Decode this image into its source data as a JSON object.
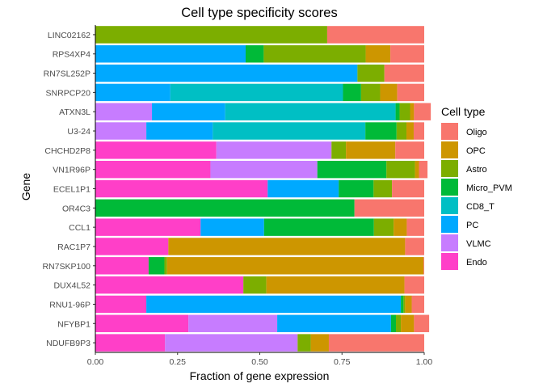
{
  "chart_data": {
    "type": "bar",
    "orientation": "horizontal",
    "stacked": true,
    "title": "Cell type specificity scores",
    "xlabel": "Fraction of gene expression",
    "ylabel": "Gene",
    "xlim": [
      0,
      1
    ],
    "xticks": [
      "0.00",
      "0.25",
      "0.50",
      "0.75",
      "1.00"
    ],
    "grid": false,
    "legend": {
      "title": "Cell type",
      "position": "right"
    },
    "categories": [
      "LINC02162",
      "RPS4XP4",
      "RN7SL252P",
      "SNRPCP20",
      "ATXN3L",
      "U3-24",
      "CHCHD2P8",
      "VN1R96P",
      "ECEL1P1",
      "OR4C3",
      "CCL1",
      "RAC1P7",
      "RN7SKP100",
      "DUX4L52",
      "RNU1-96P",
      "NFYBP1",
      "NDUFB9P3"
    ],
    "series": [
      {
        "name": "Endo",
        "color": "#FF3FC8",
        "values": [
          0,
          0,
          0,
          0,
          0,
          0,
          0.368,
          0.35,
          0.524,
          0,
          0.32,
          0.222,
          0.162,
          0.45,
          0.155,
          0.283,
          0.212
        ]
      },
      {
        "name": "VLMC",
        "color": "#C77CFF",
        "values": [
          0,
          0,
          0,
          0,
          0.172,
          0.155,
          0.35,
          0.325,
          0,
          0,
          0,
          0,
          0,
          0,
          0,
          0.27,
          0.403
        ]
      },
      {
        "name": "PC",
        "color": "#00A9FF",
        "values": [
          0,
          0.457,
          0.797,
          0.228,
          0.223,
          0.202,
          0,
          0,
          0.216,
          0,
          0.193,
          0,
          0,
          0,
          0.774,
          0.346,
          0
        ]
      },
      {
        "name": "CD8_T",
        "color": "#00BFC4",
        "values": [
          0,
          0,
          0,
          0.525,
          0.518,
          0.464,
          0,
          0,
          0,
          0,
          0,
          0,
          0,
          0,
          0,
          0,
          0
        ]
      },
      {
        "name": "Micro_PVM",
        "color": "#00BA38",
        "values": [
          0,
          0.055,
          0,
          0.055,
          0.012,
          0.095,
          0,
          0.21,
          0.106,
          0.788,
          0.334,
          0,
          0.048,
          0,
          0.008,
          0.015,
          0
        ]
      },
      {
        "name": "Astro",
        "color": "#7CAE00",
        "values": [
          0.705,
          0.31,
          0.082,
          0.058,
          0.032,
          0.03,
          0.044,
          0.087,
          0.056,
          0,
          0.06,
          0,
          0.008,
          0.07,
          0.005,
          0.015,
          0.04
        ]
      },
      {
        "name": "OPC",
        "color": "#CD9600",
        "values": [
          0,
          0.075,
          0,
          0.052,
          0.012,
          0.022,
          0.15,
          0.012,
          0,
          0,
          0.04,
          0.72,
          0.78,
          0.42,
          0.02,
          0.04,
          0.055
        ]
      },
      {
        "name": "Oligo",
        "color": "#F8766D",
        "values": [
          0.295,
          0.103,
          0.121,
          0.082,
          0.051,
          0.032,
          0.088,
          0.026,
          0.098,
          0.212,
          0.053,
          0.058,
          0.002,
          0.06,
          0.038,
          0.046,
          0.29
        ]
      }
    ]
  }
}
